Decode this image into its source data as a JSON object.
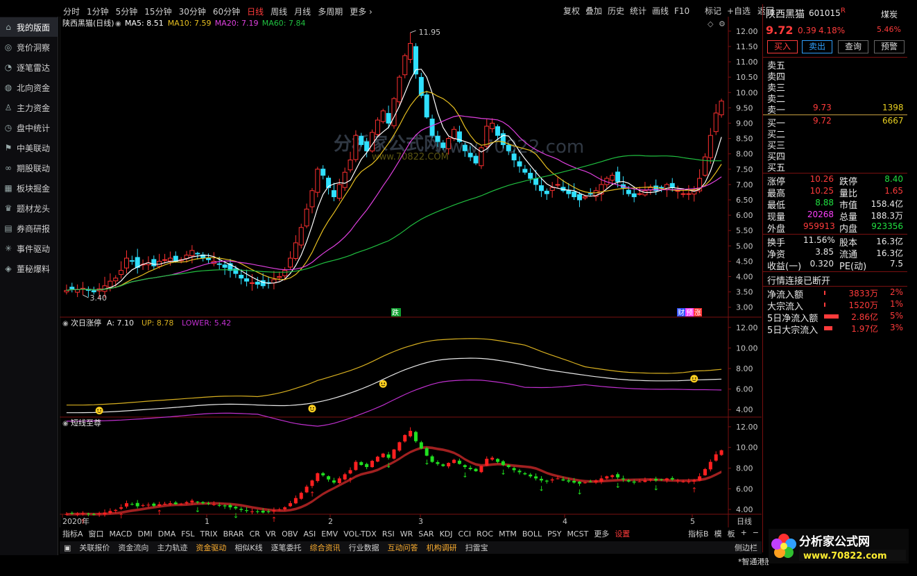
{
  "sidebar": {
    "items": [
      {
        "label": "我的版面",
        "icon": "home-icon",
        "active": true
      },
      {
        "label": "竞价洞察",
        "icon": "eye-icon"
      },
      {
        "label": "逐笔雷达",
        "icon": "radar-icon"
      },
      {
        "label": "北向资金",
        "icon": "compass-icon"
      },
      {
        "label": "主力资金",
        "icon": "person-icon"
      },
      {
        "label": "盘中统计",
        "icon": "clock-icon"
      },
      {
        "label": "中美联动",
        "icon": "flag-icon"
      },
      {
        "label": "期股联动",
        "icon": "link-icon"
      },
      {
        "label": "板块掘金",
        "icon": "grid-icon"
      },
      {
        "label": "题材龙头",
        "icon": "trophy-icon"
      },
      {
        "label": "券商研报",
        "icon": "report-icon"
      },
      {
        "label": "事件驱动",
        "icon": "spark-icon"
      },
      {
        "label": "董秘爆料",
        "icon": "speaker-icon"
      }
    ]
  },
  "topbar": {
    "tabs": [
      "分时",
      "1分钟",
      "5分钟",
      "15分钟",
      "30分钟",
      "60分钟",
      "日线",
      "周线",
      "月线",
      "多周期",
      "更多"
    ],
    "active_tab": "日线",
    "right": [
      "复权",
      "叠加",
      "历史",
      "统计",
      "画线",
      "F10",
      "标记",
      "+自选",
      "返回"
    ]
  },
  "main_panel": {
    "title": "陕西黑猫(日线)",
    "ma": [
      {
        "label": "MA5: 8.51",
        "color": "#ffffff"
      },
      {
        "label": "MA10: 7.59",
        "color": "#e8c020"
      },
      {
        "label": "MA20: 7.19",
        "color": "#e040e0"
      },
      {
        "label": "MA60: 7.84",
        "color": "#20c040"
      }
    ],
    "high_label": "11.95",
    "low_label": "3.40",
    "y_ticks": [
      "12.00",
      "11.50",
      "11.00",
      "10.50",
      "10.00",
      "9.50",
      "9.00",
      "8.50",
      "8.00",
      "7.50",
      "7.00",
      "6.50",
      "6.00",
      "5.50",
      "5.00",
      "4.50",
      "4.00",
      "3.50",
      "3.00"
    ],
    "event_marks": [
      "跌",
      "财",
      "预",
      "涨"
    ]
  },
  "sub1": {
    "title": "次日涨停",
    "a_label": "A: 7.10",
    "up_label": "UP: 8.78",
    "low_label": "LOWER: 5.42",
    "y_ticks": [
      "12.00",
      "10.00",
      "8.00",
      "6.00",
      "4.00"
    ]
  },
  "sub2": {
    "title": "短线至尊",
    "y_ticks": [
      "12.00",
      "10.00",
      "8.00",
      "6.00",
      "4.00"
    ]
  },
  "x_axis": {
    "labels": [
      "2020年",
      "1",
      "2",
      "3",
      "4",
      "5"
    ],
    "period": "日线"
  },
  "watermark": {
    "text1": "分析家公式网",
    "text2": "www.70822.com",
    "text3": "www.70822.COM"
  },
  "indicator_bar": {
    "items": [
      "指标A",
      "窗口",
      "MACD",
      "DMI",
      "DMA",
      "FSL",
      "TRIX",
      "BRAR",
      "CR",
      "VR",
      "OBV",
      "ASI",
      "EMV",
      "VOL-TDX",
      "RSI",
      "WR",
      "SAR",
      "KDJ",
      "CCI",
      "ROC",
      "MTM",
      "BOLL",
      "PSY",
      "MCST",
      "更多",
      "设置"
    ],
    "right": [
      "指标B",
      "模",
      "板",
      "+",
      "−"
    ]
  },
  "bottom_tabs": {
    "items": [
      "关联报价",
      "资金流向",
      "主力轨迹",
      "资金驱动",
      "相似K线",
      "逐笔委托",
      "综合资讯",
      "行业数据",
      "互动问答",
      "机构调研",
      "扫雷宝"
    ],
    "right": "侧边栏",
    "ticker": "*智通港股"
  },
  "quote": {
    "name": "陕西黑猫",
    "code": "601015",
    "r_mark": "R",
    "sector": "煤炭",
    "sector_pct": "5.46%",
    "price": "9.72",
    "change": "0.39",
    "pct": "4.18%",
    "buttons": [
      "买入",
      "卖出",
      "查询",
      "预警"
    ],
    "asks": [
      {
        "label": "卖五",
        "price": "",
        "vol": ""
      },
      {
        "label": "卖四",
        "price": "",
        "vol": ""
      },
      {
        "label": "卖三",
        "price": "",
        "vol": ""
      },
      {
        "label": "卖二",
        "price": "",
        "vol": ""
      },
      {
        "label": "卖一",
        "price": "9.73",
        "vol": "1398"
      }
    ],
    "bids": [
      {
        "label": "买一",
        "price": "9.72",
        "vol": "6667"
      },
      {
        "label": "买二",
        "price": "",
        "vol": ""
      },
      {
        "label": "买三",
        "price": "",
        "vol": ""
      },
      {
        "label": "买四",
        "price": "",
        "vol": ""
      },
      {
        "label": "买五",
        "price": "",
        "vol": ""
      }
    ],
    "stats": [
      [
        "涨停",
        "10.26",
        "跌停",
        "8.40"
      ],
      [
        "最高",
        "10.25",
        "量比",
        "1.65"
      ],
      [
        "最低",
        "8.88",
        "市值",
        "158.4亿"
      ],
      [
        "现量",
        "20268",
        "总量",
        "188.3万"
      ],
      [
        "外盘",
        "959913",
        "内盘",
        "923356"
      ]
    ],
    "stats2": [
      [
        "换手",
        "11.56%",
        "股本",
        "16.3亿"
      ],
      [
        "净资",
        "3.85",
        "流通",
        "16.3亿"
      ],
      [
        "收益(一)",
        "0.320",
        "PE(动)",
        "7.5"
      ]
    ],
    "status": "行情连接已断开",
    "flows": [
      {
        "label": "净流入额",
        "val": "3833万",
        "pct": "2%",
        "bar": 0.02
      },
      {
        "label": "大宗流入",
        "val": "1520万",
        "pct": "1%",
        "bar": 0.01
      },
      {
        "label": "5日净流入额",
        "val": "2.86亿",
        "pct": "5%",
        "bar": 0.35
      },
      {
        "label": "5日大宗流入",
        "val": "1.97亿",
        "pct": "3%",
        "bar": 0.2
      }
    ]
  },
  "chart_data": {
    "type": "candlestick",
    "closes": [
      3.55,
      3.6,
      3.58,
      3.62,
      3.55,
      3.5,
      3.6,
      3.7,
      3.85,
      3.95,
      4.2,
      4.6,
      4.5,
      4.3,
      4.4,
      4.45,
      4.35,
      4.5,
      4.55,
      4.6,
      4.5,
      4.55,
      4.7,
      4.85,
      4.75,
      4.6,
      4.55,
      4.5,
      4.4,
      4.3,
      4.2,
      4.1,
      3.95,
      3.85,
      3.8,
      3.75,
      3.7,
      3.8,
      3.9,
      4.0,
      4.2,
      4.6,
      5.1,
      5.6,
      6.2,
      6.8,
      7.5,
      7.3,
      6.9,
      6.6,
      7.0,
      7.4,
      7.8,
      8.6,
      8.3,
      8.1,
      8.7,
      9.1,
      9.4,
      9.0,
      9.8,
      10.5,
      11.2,
      11.6,
      10.6,
      9.9,
      9.2,
      8.6,
      8.4,
      8.2,
      8.5,
      8.8,
      8.4,
      8.1,
      7.9,
      7.7,
      8.2,
      8.9,
      9.0,
      8.6,
      8.3,
      8.1,
      7.8,
      7.6,
      7.4,
      7.2,
      7.0,
      6.8,
      6.7,
      6.9,
      7.0,
      6.8,
      6.7,
      6.6,
      6.5,
      6.6,
      6.7,
      6.8,
      7.0,
      7.2,
      7.3,
      7.1,
      6.9,
      6.7,
      6.6,
      6.7,
      6.8,
      6.9,
      6.8,
      6.9,
      7.0,
      6.9,
      6.8,
      6.7,
      6.7,
      6.8,
      7.2,
      7.9,
      8.6,
      9.33,
      9.72
    ],
    "ma_names": [
      "MA5",
      "MA10",
      "MA20",
      "MA60"
    ]
  }
}
